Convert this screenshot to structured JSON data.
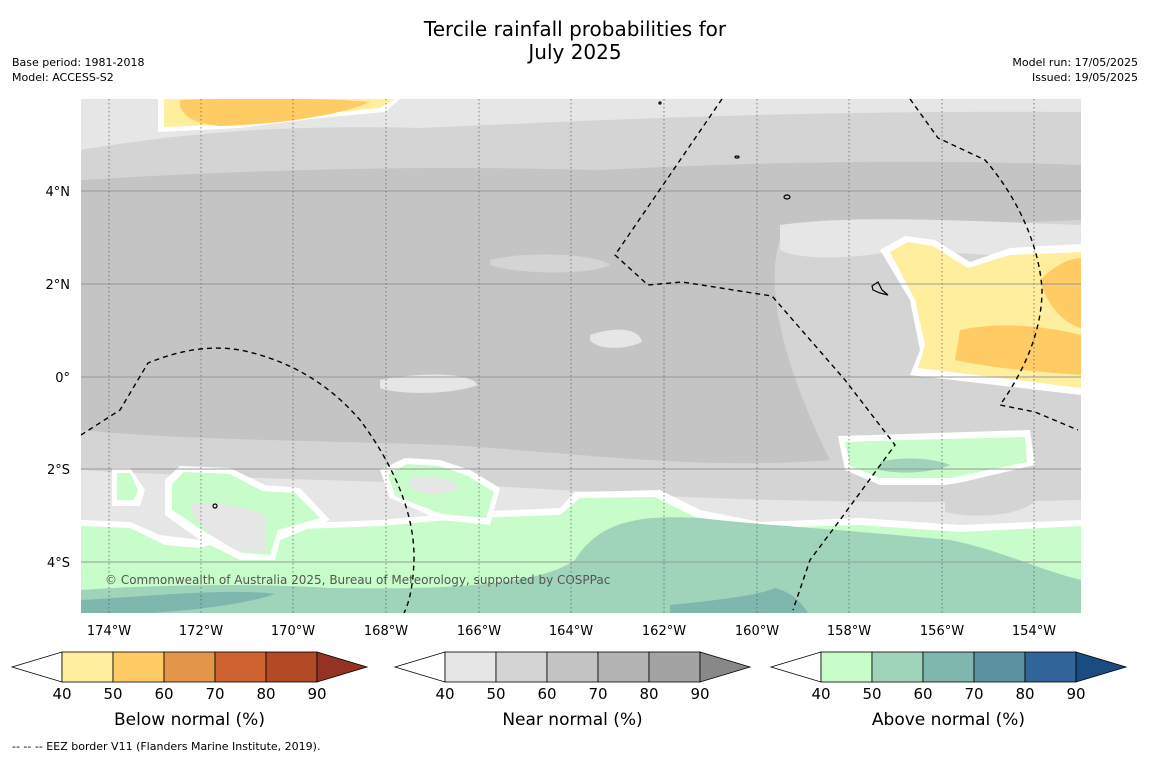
{
  "title": "Tercile rainfall probabilities for\nJuly 2025",
  "base_period": "Base period: 1981-2018",
  "model": "Model: ACCESS-S2",
  "model_run": "Model run: 17/05/2025",
  "issued": "Issued: 19/05/2025",
  "copyright": "© Commonwealth of Australia 2025, Bureau of Meteorology, supported by COSPPac",
  "footer": "--  --  -- EEZ border V11 (Flanders Marine Institute, 2019).",
  "lat_labels": [
    "4°N",
    "2°N",
    "0°",
    "2°S",
    "4°S"
  ],
  "lon_labels": [
    "174°W",
    "172°W",
    "170°W",
    "168°W",
    "166°W",
    "164°W",
    "162°W",
    "160°W",
    "158°W",
    "156°W",
    "154°W"
  ],
  "colorbars": [
    {
      "label": "Below normal (%)",
      "ticks": [
        "40",
        "50",
        "60",
        "70",
        "80",
        "90"
      ],
      "colors": [
        "#ffee9e",
        "#fecb65",
        "#e3964a",
        "#cf6330",
        "#b24a26",
        "#943323"
      ]
    },
    {
      "label": "Near normal (%)",
      "ticks": [
        "40",
        "50",
        "60",
        "70",
        "80",
        "90"
      ],
      "colors": [
        "#e6e6e6",
        "#d4d4d4",
        "#c4c4c4",
        "#b3b3b3",
        "#a3a3a3",
        "#888888"
      ]
    },
    {
      "label": "Above normal (%)",
      "ticks": [
        "40",
        "50",
        "60",
        "70",
        "80",
        "90"
      ],
      "colors": [
        "#c8fccb",
        "#9fd4bb",
        "#7fb6ad",
        "#5c929f",
        "#31659a",
        "#1a4c82"
      ]
    }
  ],
  "colors": {
    "near40": "#e6e6e6",
    "near50": "#d4d4d4",
    "near60": "#c4c4c4",
    "below40": "#ffee9e",
    "below50": "#fecb65",
    "above40": "#c8fccb",
    "above50": "#9fd4bb",
    "above60": "#7fb6ad"
  }
}
